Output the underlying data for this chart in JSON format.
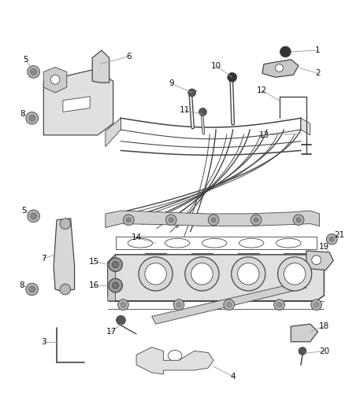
{
  "bg_color": "#ffffff",
  "line_color": "#444444",
  "label_color": "#111111",
  "label_fontsize": 7.5,
  "lw_main": 1.1,
  "lw_thin": 0.6
}
